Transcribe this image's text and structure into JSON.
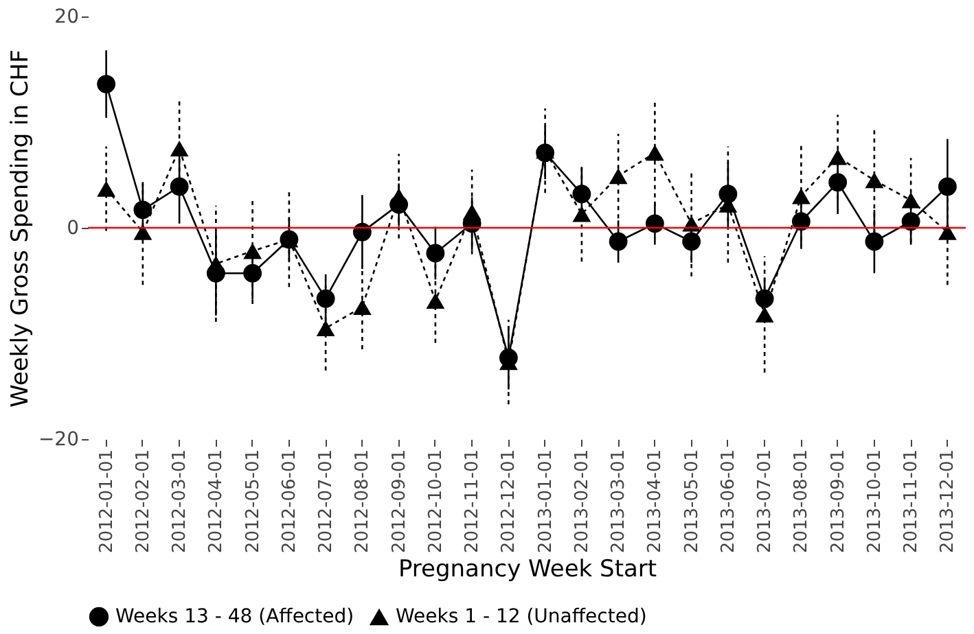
{
  "chart_data": {
    "type": "line",
    "xlabel": "Pregnancy Week Start",
    "ylabel": "Weekly Gross Spending in CHF",
    "categories": [
      "2012-01-01",
      "2012-02-01",
      "2012-03-01",
      "2012-04-01",
      "2012-05-01",
      "2012-06-01",
      "2012-07-01",
      "2012-08-01",
      "2012-09-01",
      "2012-10-01",
      "2012-11-01",
      "2012-12-01",
      "2013-01-01",
      "2013-02-01",
      "2013-03-01",
      "2013-04-01",
      "2013-05-01",
      "2013-06-01",
      "2013-07-01",
      "2013-08-01",
      "2013-09-01",
      "2013-10-01",
      "2013-11-01",
      "2013-12-01"
    ],
    "series": [
      {
        "name": "Weeks 13 - 48 (Affected)",
        "color": "#000000",
        "marker": "circle",
        "line_style": "solid",
        "values": [
          13.6,
          1.7,
          3.9,
          -4.3,
          -4.3,
          -1.1,
          -6.7,
          -0.4,
          2.2,
          -2.4,
          0.4,
          -12.3,
          7.1,
          3.2,
          -1.3,
          0.4,
          -1.3,
          3.2,
          -6.7,
          0.6,
          4.3,
          -1.3,
          0.6,
          3.9
        ],
        "errors": [
          3.2,
          2.5,
          3.5,
          4,
          2.5,
          2,
          2.3,
          3.5,
          2,
          2.5,
          2.5,
          3,
          2.5,
          2.5,
          2,
          2,
          2,
          3,
          2,
          2.3,
          3,
          3,
          2.2,
          4.5
        ]
      },
      {
        "name": "Weeks 1 - 12 (Unaffected)",
        "color": "#000000",
        "marker": "triangle",
        "line_style": "dashed",
        "values": [
          3.7,
          -0.4,
          7.5,
          -3.4,
          -2.2,
          -1.1,
          -9.5,
          -7.5,
          3.0,
          -6.9,
          1.5,
          -12.7,
          7.3,
          1.3,
          4.9,
          7.1,
          0.4,
          2.2,
          -8.2,
          3.0,
          6.7,
          4.5,
          2.6,
          -0.4
        ],
        "errors": [
          4,
          5,
          4.5,
          5.5,
          5,
          4.5,
          4,
          4,
          4,
          4,
          4,
          4,
          4,
          4.5,
          4,
          5,
          5,
          5.5,
          5.5,
          5,
          4,
          5,
          4,
          5
        ]
      }
    ],
    "ylim": [
      -20,
      20
    ],
    "yticks": [
      -20,
      0,
      20
    ],
    "grid": false,
    "legend": "bottom",
    "ref_lines": [
      {
        "axis": "y",
        "value": 0,
        "color": "#ff0000",
        "line_style": "solid"
      }
    ]
  }
}
